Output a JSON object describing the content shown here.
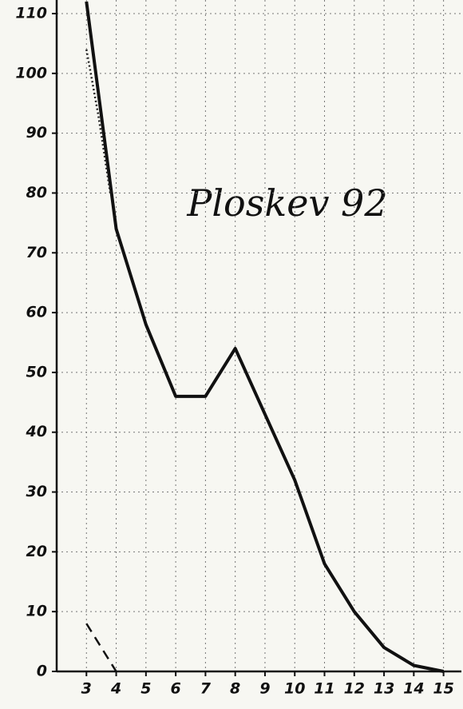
{
  "chart_data": {
    "type": "line",
    "title": "Ploskev 92",
    "series": [
      {
        "color": "#111111",
        "style": "solid",
        "x": [
          3,
          4,
          5,
          6,
          7,
          8,
          9,
          10,
          11,
          12,
          13,
          14,
          15
        ],
        "values": [
          112,
          74,
          58,
          46,
          46,
          54,
          43,
          32,
          18,
          10,
          4,
          1,
          0
        ]
      },
      {
        "color": "#222222",
        "style": "dotted",
        "x": [
          3,
          3.4,
          3.8
        ],
        "values": [
          104,
          93,
          80
        ]
      },
      {
        "color": "#111111",
        "style": "dashed",
        "x": [
          3,
          4
        ],
        "values": [
          8,
          0
        ]
      }
    ],
    "xlim": [
      2,
      15.6
    ],
    "xticks": [
      3,
      4,
      5,
      6,
      7,
      8,
      9,
      10,
      11,
      12,
      13,
      14,
      15
    ],
    "ylim": [
      0,
      110
    ],
    "yticks": [
      0,
      10,
      20,
      30,
      40,
      50,
      60,
      70,
      80,
      90,
      100,
      110
    ],
    "grid": true
  }
}
